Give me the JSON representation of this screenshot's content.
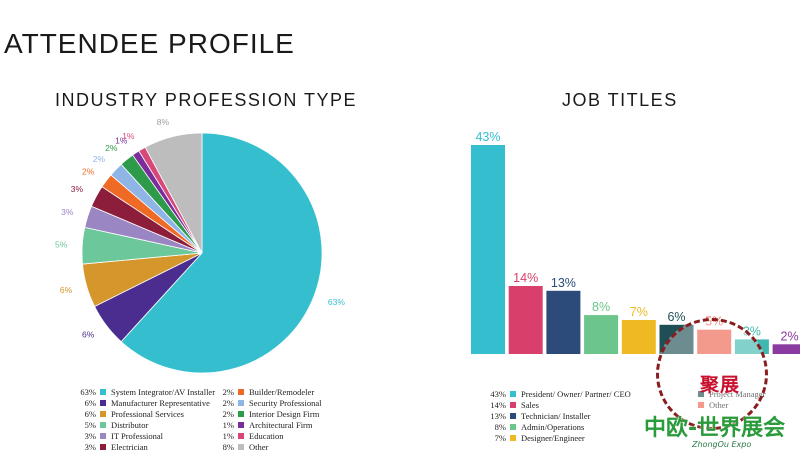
{
  "page": {
    "title": "ATTENDEE PROFILE"
  },
  "chart_data": [
    {
      "type": "pie",
      "title": "INDUSTRY PROFESSION TYPE",
      "slices": [
        {
          "label": "System Integrator/AV Installer",
          "value": 63,
          "display": "63%",
          "color": "#35bfce"
        },
        {
          "label": "Manufacturer Representative",
          "value": 6,
          "display": "6%",
          "color": "#4b2d8f"
        },
        {
          "label": "Professional Services",
          "value": 6,
          "display": "6%",
          "color": "#d5962c"
        },
        {
          "label": "Distributor",
          "value": 5,
          "display": "5%",
          "color": "#6cc79a"
        },
        {
          "label": "IT Professional",
          "value": 3,
          "display": "3%",
          "color": "#9b86c4"
        },
        {
          "label": "Electrician",
          "value": 3,
          "display": "3%",
          "color": "#8c1e3c"
        },
        {
          "label": "Builder/Remodeler",
          "value": 2,
          "display": "2%",
          "color": "#ef6a24"
        },
        {
          "label": "Security Professional",
          "value": 2,
          "display": "2%",
          "color": "#8fb5e6"
        },
        {
          "label": "Interior Design Firm",
          "value": 2,
          "display": "2%",
          "color": "#2d9b4a"
        },
        {
          "label": "Architectural Firm",
          "value": 1,
          "display": "1%",
          "color": "#7a2d9b"
        },
        {
          "label": "Education",
          "value": 1,
          "display": "1%",
          "color": "#d8477a"
        },
        {
          "label": "Other",
          "value": 8,
          "display": "8%",
          "color": "#bdbdbd"
        }
      ]
    },
    {
      "type": "bar",
      "title": "JOB TITLES",
      "categories": [
        "President/ Owner/ Partner/ CEO",
        "Sales",
        "Technician/ Installer",
        "Admin/Operations",
        "Designer/Engineer",
        "Project Manager",
        "Other",
        "",
        ""
      ],
      "values": [
        43,
        14,
        13,
        8,
        7,
        6,
        5,
        3,
        2
      ],
      "display": [
        "43%",
        "14%",
        "13%",
        "8%",
        "7%",
        "6%",
        "5%",
        "3%",
        "2%"
      ],
      "colors": [
        "#35bfce",
        "#d83f6a",
        "#2c4a7a",
        "#6cc58a",
        "#efb923",
        "#1f4f55",
        "#ee6450",
        "#3fb8b0",
        "#8a3aa0"
      ],
      "ylim": [
        0,
        43
      ],
      "legend": [
        {
          "pct": "43%",
          "label": "President/ Owner/ Partner/ CEO",
          "color": "#35bfce"
        },
        {
          "pct": "14%",
          "label": "Sales",
          "color": "#d83f6a"
        },
        {
          "pct": "13%",
          "label": "Technician/ Installer",
          "color": "#2c4a7a"
        },
        {
          "pct": "8%",
          "label": "Admin/Operations",
          "color": "#6cc58a"
        },
        {
          "pct": "7%",
          "label": "Designer/Engineer",
          "color": "#efb923"
        },
        {
          "pct": "",
          "label": "Project Manager",
          "color": "#1f4f55"
        },
        {
          "pct": "",
          "label": "Other",
          "color": "#ee6450"
        }
      ]
    }
  ],
  "watermark": {
    "seal_text": "聚展",
    "name_cn": "中欧-世界展会",
    "name_en": "ZhongOu Expo"
  }
}
